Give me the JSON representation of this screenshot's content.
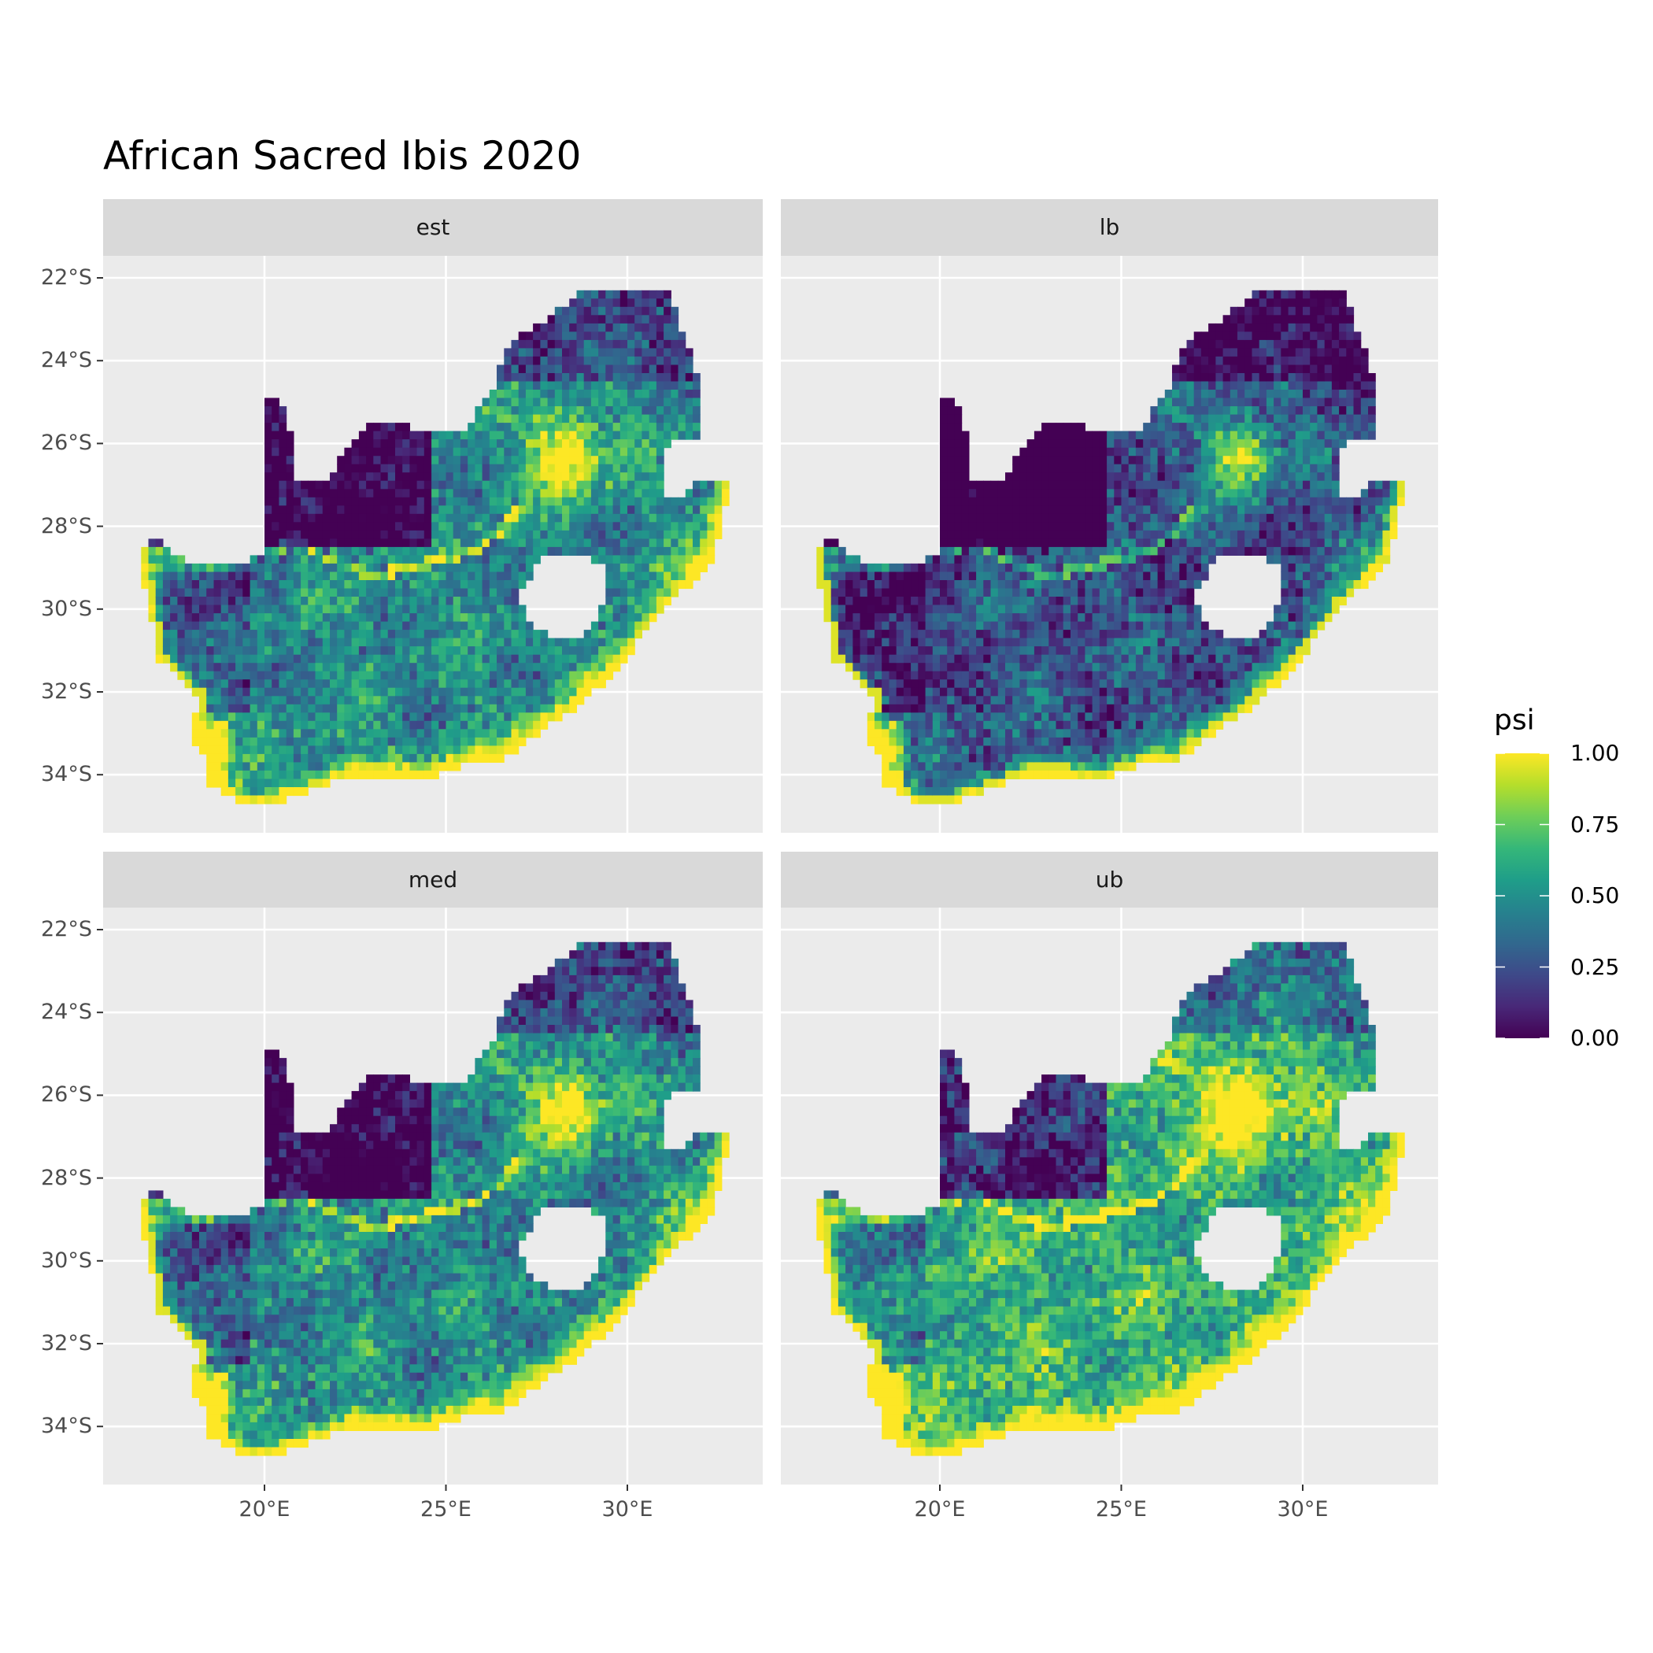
{
  "title": "African Sacred Ibis 2020",
  "chart_data": {
    "type": "heatmap",
    "title": "African Sacred Ibis 2020",
    "facets": [
      "est",
      "lb",
      "med",
      "ub"
    ],
    "facet_shift": {
      "est": 0.0,
      "lb": -0.22,
      "med": 0.0,
      "ub": 0.16
    },
    "x_ticks": [
      {
        "value": 20,
        "label": "20°E"
      },
      {
        "value": 25,
        "label": "25°E"
      },
      {
        "value": 30,
        "label": "30°E"
      }
    ],
    "y_ticks": [
      {
        "value": -22,
        "label": "22°S"
      },
      {
        "value": -24,
        "label": "24°S"
      },
      {
        "value": -26,
        "label": "26°S"
      },
      {
        "value": -28,
        "label": "28°S"
      },
      {
        "value": -30,
        "label": "30°S"
      },
      {
        "value": -32,
        "label": "32°S"
      },
      {
        "value": -34,
        "label": "34°S"
      }
    ],
    "xlim": [
      15.55,
      33.75
    ],
    "ylim": [
      -35.4,
      -21.47
    ],
    "legend": {
      "title": "psi",
      "ticks": [
        {
          "value": 0.0,
          "label": "0.00"
        },
        {
          "value": 0.25,
          "label": "0.25"
        },
        {
          "value": 0.5,
          "label": "0.50"
        },
        {
          "value": 0.75,
          "label": "0.75"
        },
        {
          "value": 1.0,
          "label": "1.00"
        }
      ],
      "range": [
        0,
        1
      ],
      "position": "right"
    },
    "colorscale": [
      "#440154",
      "#482878",
      "#3e4989",
      "#31688e",
      "#26828e",
      "#1f9e89",
      "#35b779",
      "#6ece58",
      "#b5de2b",
      "#fde725"
    ],
    "panel_background": "#ebebeb",
    "strip_background": "#d9d9d9",
    "grid": true
  }
}
